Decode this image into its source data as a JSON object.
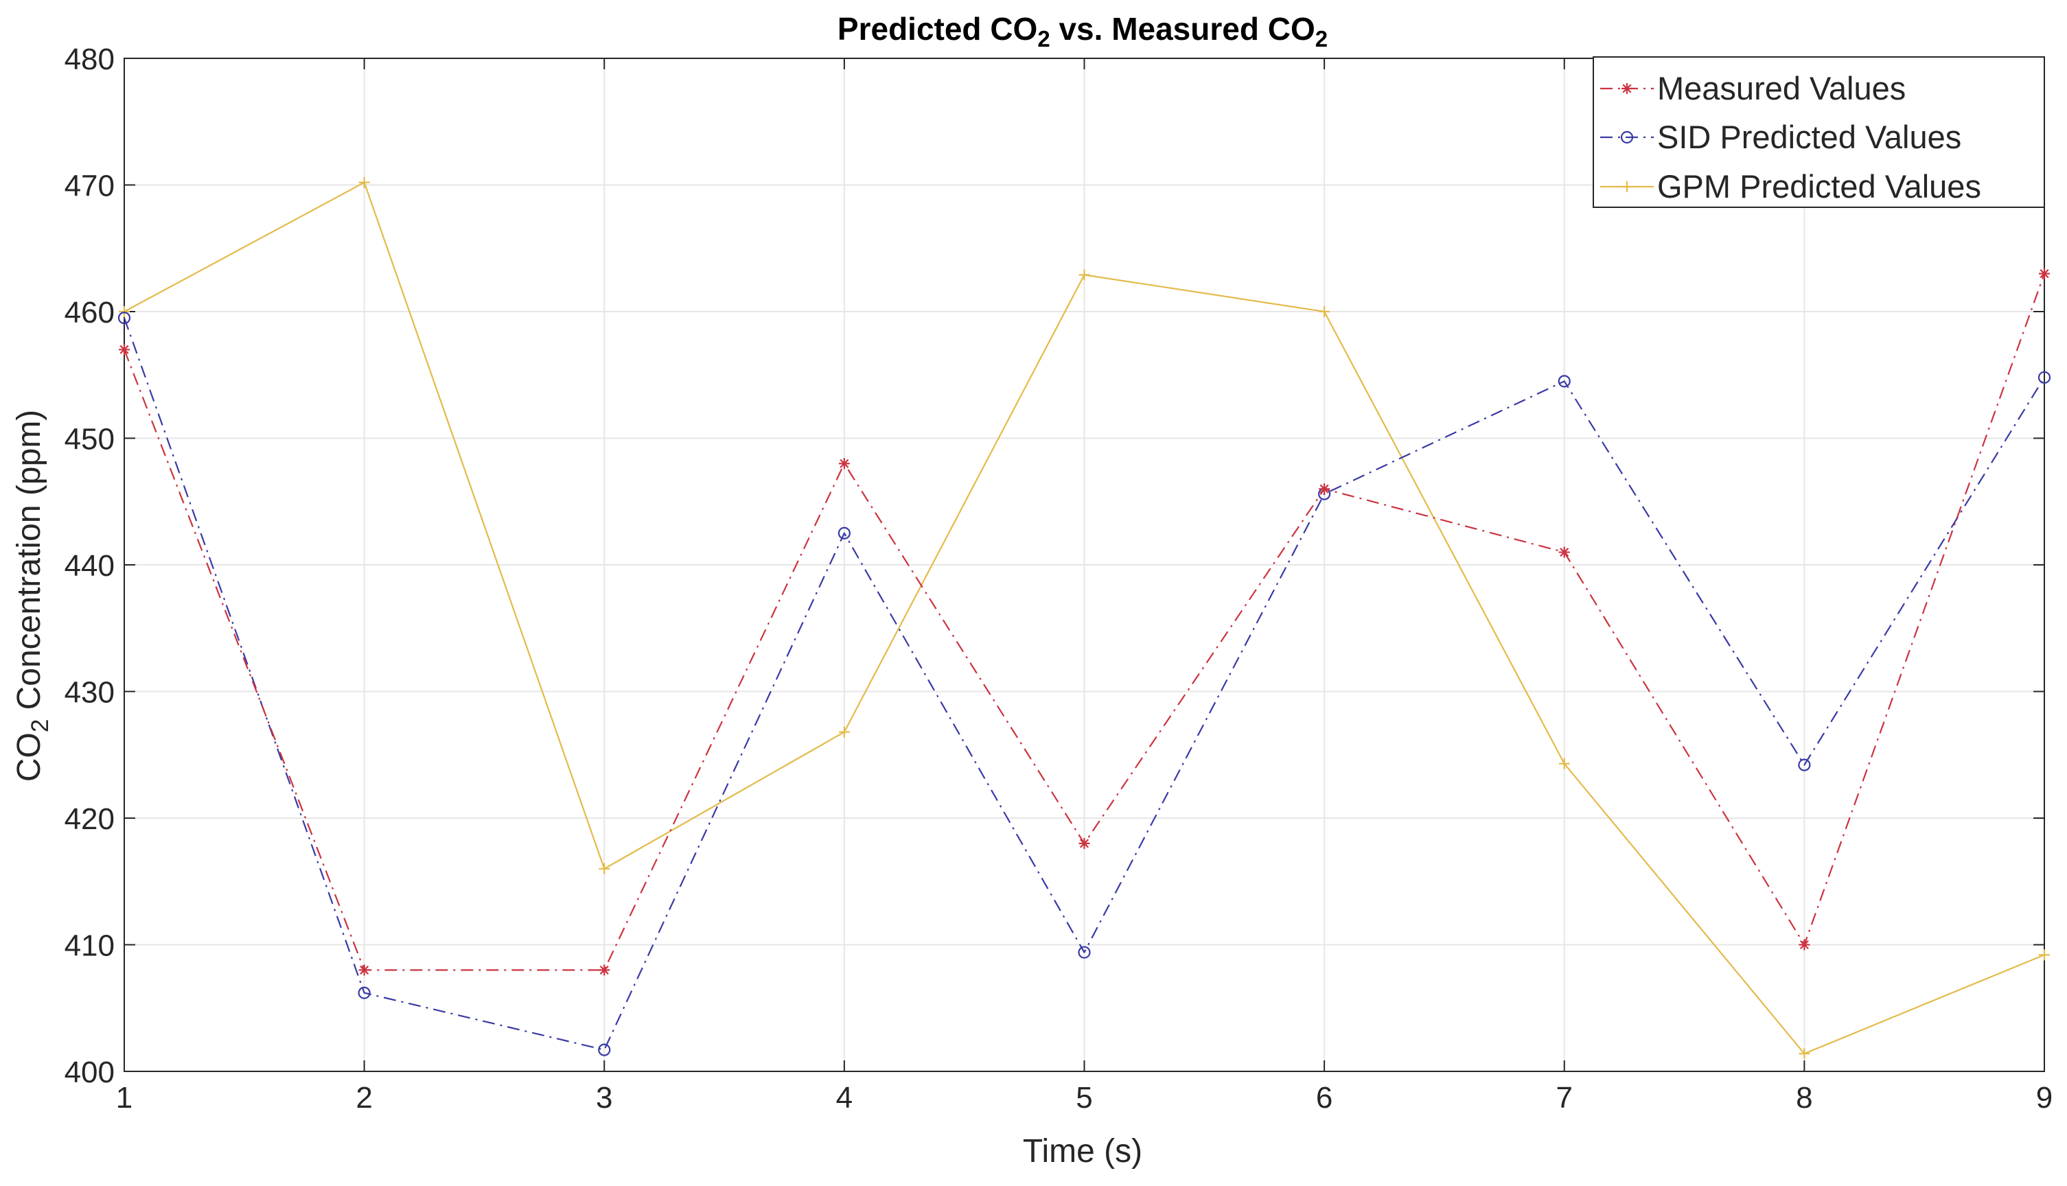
{
  "chart_data": {
    "type": "line",
    "title": {
      "parts": [
        {
          "text": "Predicted CO",
          "sub": false
        },
        {
          "text": "2",
          "sub": true
        },
        {
          "text": " vs. Measured CO",
          "sub": false
        },
        {
          "text": "2",
          "sub": true
        }
      ]
    },
    "xlabel": "Time (s)",
    "ylabel": {
      "parts": [
        {
          "text": "CO",
          "sub": false
        },
        {
          "text": "2",
          "sub": true
        },
        {
          "text": " Concentration (ppm)",
          "sub": false
        }
      ]
    },
    "x": [
      1,
      2,
      3,
      4,
      5,
      6,
      7,
      8,
      9
    ],
    "xlim": [
      1,
      9
    ],
    "ylim": [
      400,
      480
    ],
    "xticks": [
      1,
      2,
      3,
      4,
      5,
      6,
      7,
      8,
      9
    ],
    "yticks": [
      400,
      410,
      420,
      430,
      440,
      450,
      460,
      470,
      480
    ],
    "grid": true,
    "legend_position": "top-right",
    "series": [
      {
        "name": "Measured Values",
        "color": "#cc3340",
        "marker": "asterisk",
        "line_style": "dash-dot",
        "values": [
          457,
          408,
          408,
          448,
          418,
          446,
          441,
          410,
          463
        ]
      },
      {
        "name": "SID Predicted Values",
        "color": "#3a3aa6",
        "marker": "circle",
        "line_style": "dash-dot",
        "values": [
          459.5,
          406.2,
          401.7,
          442.5,
          409.4,
          445.6,
          454.5,
          424.2,
          454.8
        ]
      },
      {
        "name": "GPM Predicted Values",
        "color": "#e3bb4a",
        "marker": "plus",
        "line_style": "solid",
        "values": [
          460,
          470.2,
          416,
          426.8,
          462.9,
          460,
          424.3,
          401.4,
          409.2
        ]
      }
    ]
  }
}
